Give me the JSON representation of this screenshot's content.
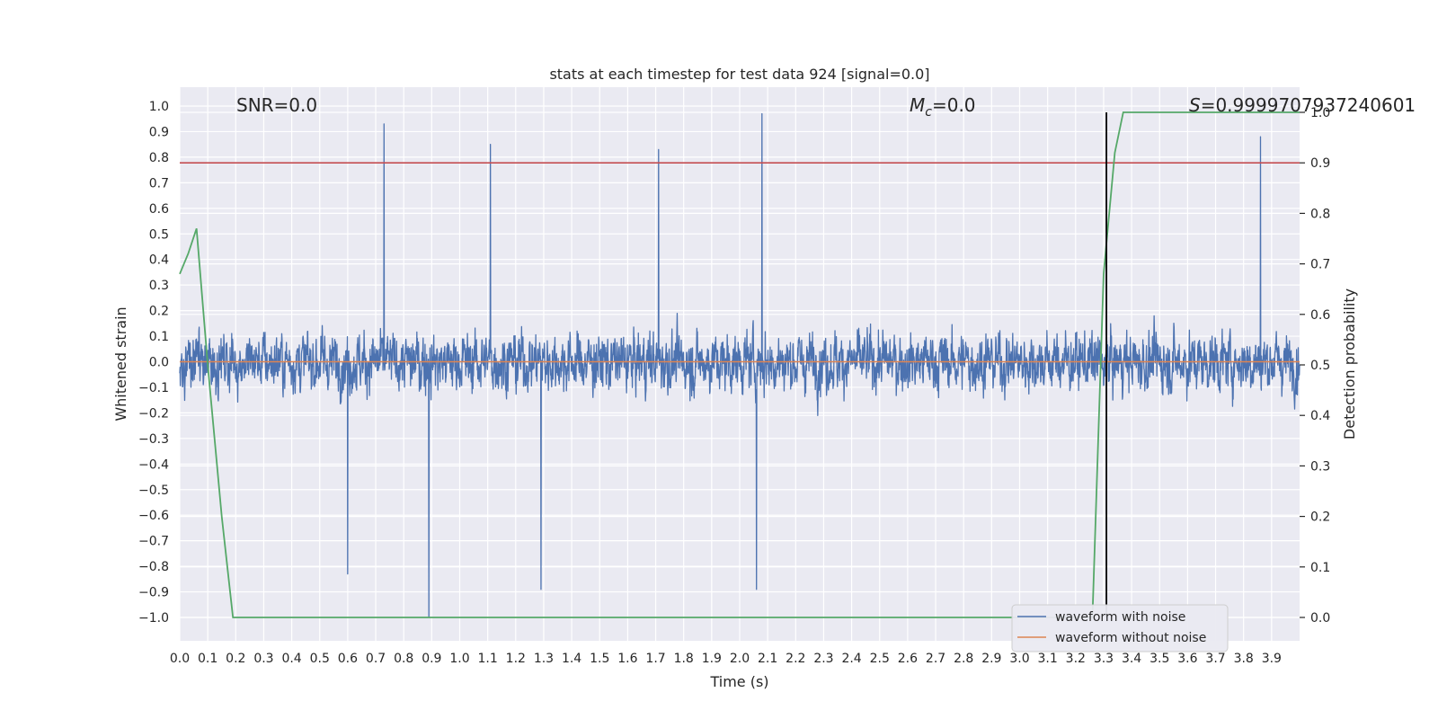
{
  "chart_data": {
    "type": "line",
    "title": "stats at each timestep for test data 924 [signal=0.0]",
    "xlabel": "Time (s)",
    "ylabel": "Whitened strain",
    "y2label": "Detection probability",
    "xlim": [
      0.0,
      4.0
    ],
    "ylim": [
      -1.1,
      1.1
    ],
    "y2lim": [
      -0.05,
      1.0
    ],
    "x_ticks": [
      "0.0",
      "0.1",
      "0.2",
      "0.3",
      "0.4",
      "0.5",
      "0.6",
      "0.7",
      "0.8",
      "0.9",
      "1.0",
      "1.1",
      "1.2",
      "1.3",
      "1.4",
      "1.5",
      "1.6",
      "1.7",
      "1.8",
      "1.9",
      "2.0",
      "2.1",
      "2.2",
      "2.3",
      "2.4",
      "2.5",
      "2.6",
      "2.7",
      "2.8",
      "2.9",
      "3.0",
      "3.1",
      "3.2",
      "3.3",
      "3.4",
      "3.5",
      "3.6",
      "3.7",
      "3.8",
      "3.9"
    ],
    "y_ticks": [
      "1.0",
      "0.9",
      "0.8",
      "0.7",
      "0.6",
      "0.5",
      "0.4",
      "0.3",
      "0.2",
      "0.1",
      "0.0",
      "−0.1",
      "−0.2",
      "−0.3",
      "−0.4",
      "−0.5",
      "−0.6",
      "−0.7",
      "−0.8",
      "−0.9",
      "−1.0"
    ],
    "y2_ticks": [
      "1.0",
      "0.9",
      "0.8",
      "0.7",
      "0.6",
      "0.5",
      "0.4",
      "0.3",
      "0.2",
      "0.1",
      "0.0"
    ],
    "grid": true,
    "legend_position": "bottom-right",
    "annotations": {
      "snr": "SNR=0.0",
      "mc_symbol": "M",
      "mc_sub": "c",
      "mc_value": "=0.0",
      "s_symbol": "S",
      "s_value": "=0.9999707937240601"
    },
    "series": [
      {
        "name": "waveform with noise",
        "color": "#4c72b0",
        "style": "noise",
        "x_range": [
          0.0,
          4.0
        ],
        "amplitude_range": [
          -1.0,
          0.97
        ],
        "peaks": [
          [
            0.73,
            0.93
          ],
          [
            1.11,
            0.85
          ],
          [
            1.71,
            0.83
          ],
          [
            2.08,
            0.97
          ],
          [
            3.86,
            0.88
          ],
          [
            0.89,
            -1.0
          ],
          [
            2.06,
            -0.89
          ],
          [
            1.29,
            -0.89
          ],
          [
            0.6,
            -0.83
          ]
        ]
      },
      {
        "name": "waveform without noise",
        "color": "#dd8452",
        "x": [
          0.0,
          4.0
        ],
        "y": [
          0.0,
          0.0
        ]
      },
      {
        "name": "",
        "color": "#55a868",
        "axis": "right",
        "x": [
          0.0,
          0.03,
          0.06,
          0.1,
          0.15,
          0.19,
          0.26,
          3.26,
          3.3,
          3.34,
          3.37,
          4.0
        ],
        "y": [
          0.68,
          0.72,
          0.77,
          0.5,
          0.2,
          0.0,
          0.0,
          0.0,
          0.68,
          0.92,
          1.0,
          1.0
        ]
      }
    ],
    "threshold": {
      "color": "#c44e52",
      "y2": 0.9
    },
    "marker_line": {
      "color": "#000000",
      "x": 3.31
    }
  }
}
